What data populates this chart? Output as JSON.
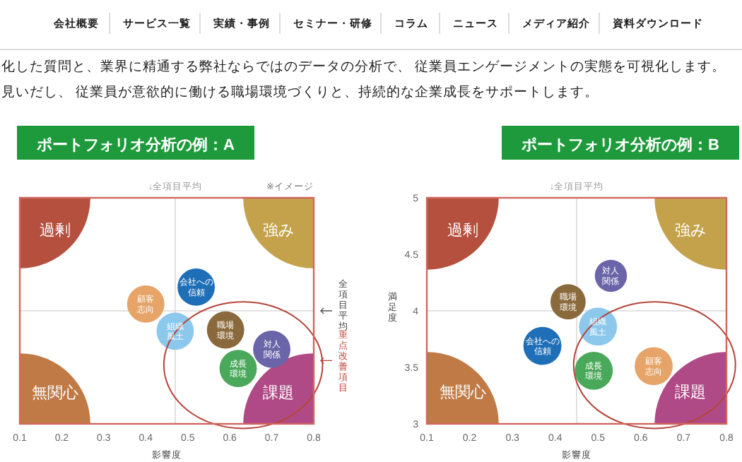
{
  "chart_data": [
    {
      "type": "other",
      "categories": [
        "会社概要",
        "サービス一覧",
        "実績・事例",
        "セミナー・研修",
        "コラム",
        "ニュース",
        "メディア紹介",
        "資料ダウンロード"
      ],
      "annotations": [
        "化した質問と、業界に精通する弊社ならではのデータの分析で、 従業員エンゲージメントの実態を可視化します。",
        "見いだし、 従業員が意欲的に働ける職場環境づくりと、持続的な企業成長をサポートします。"
      ]
    },
    {
      "type": "bubble",
      "title": "ポートフォリオ分析の例：A",
      "xlabel": "影響度",
      "xlim": [
        0.1,
        0.8
      ],
      "xticks": [
        0.1,
        0.2,
        0.3,
        0.4,
        0.5,
        0.6,
        0.7,
        0.8
      ],
      "ylim": [
        3,
        5
      ],
      "tick_labels": "x",
      "ref_lines": [
        {
          "axis": "x",
          "value": 0.47,
          "label": "↓全項目平均",
          "color": "#d9d9d9"
        },
        {
          "axis": "y",
          "value": 4,
          "label": "全項目平均",
          "color": "#d9d9d9"
        }
      ],
      "annotations": [
        "※イメージ",
        "重点改善項目"
      ],
      "series": [
        {
          "name": "過剰",
          "color": "#b5503f",
          "x": [
            0.1
          ],
          "values": [
            5
          ],
          "sizes": [
            1
          ]
        },
        {
          "name": "無関心",
          "color": "#c07a45",
          "x": [
            0.1
          ],
          "values": [
            3
          ],
          "sizes": [
            1
          ]
        },
        {
          "name": "強み",
          "color": "#c4a24c",
          "x": [
            0.8
          ],
          "values": [
            5
          ],
          "sizes": [
            1
          ]
        },
        {
          "name": "課題",
          "color": "#b04a86",
          "x": [
            0.8
          ],
          "values": [
            3
          ],
          "sizes": [
            1
          ]
        },
        {
          "name": "会社への信頼",
          "color": "#1f6fb8",
          "x": [
            0.52
          ],
          "values": [
            4.21
          ],
          "sizes": [
            0.07
          ]
        },
        {
          "name": "顧客志向",
          "color": "#e6a468",
          "x": [
            0.4
          ],
          "values": [
            4.06
          ],
          "sizes": [
            0.07
          ]
        },
        {
          "name": "組織風土",
          "color": "#8cc8ec",
          "x": [
            0.47
          ],
          "values": [
            3.82
          ],
          "sizes": [
            0.07
          ]
        },
        {
          "name": "職場環境",
          "color": "#8a6a3c",
          "x": [
            0.59
          ],
          "values": [
            3.83
          ],
          "sizes": [
            0.07
          ]
        },
        {
          "name": "対人関係",
          "color": "#6a64a8",
          "x": [
            0.7
          ],
          "values": [
            3.66
          ],
          "sizes": [
            0.07
          ]
        },
        {
          "name": "成長環境",
          "color": "#4aa85a",
          "x": [
            0.62
          ],
          "values": [
            3.49
          ],
          "sizes": [
            0.07
          ]
        }
      ]
    },
    {
      "type": "bubble",
      "title": "ポートフォリオ分析の例：B",
      "xlabel": "影響度",
      "ylabel": "満足度",
      "xlim": [
        0.1,
        0.8
      ],
      "xticks": [
        0.1,
        0.2,
        0.3,
        0.4,
        0.5,
        0.6,
        0.7,
        0.8
      ],
      "ylim": [
        3,
        5
      ],
      "yticks": [
        3,
        3.5,
        4,
        4.5,
        5
      ],
      "ref_lines": [
        {
          "axis": "x",
          "value": 0.45,
          "label": "↓全項目平均",
          "color": "#d9d9d9"
        },
        {
          "axis": "y",
          "value": 4,
          "color": "#d9d9d9"
        }
      ],
      "series": [
        {
          "name": "過剰",
          "color": "#b5503f",
          "x": [
            0.1
          ],
          "values": [
            5
          ],
          "sizes": [
            1
          ]
        },
        {
          "name": "無関心",
          "color": "#c07a45",
          "x": [
            0.1
          ],
          "values": [
            3
          ],
          "sizes": [
            1
          ]
        },
        {
          "name": "強み",
          "color": "#c4a24c",
          "x": [
            0.8
          ],
          "values": [
            5
          ],
          "sizes": [
            1
          ]
        },
        {
          "name": "課題",
          "color": "#b04a86",
          "x": [
            0.8
          ],
          "values": [
            3
          ],
          "sizes": [
            1
          ]
        },
        {
          "name": "対人関係",
          "color": "#6a64a8",
          "x": [
            0.53
          ],
          "values": [
            4.31
          ],
          "sizes": [
            0.05
          ]
        },
        {
          "name": "職場環境",
          "color": "#8a6a3c",
          "x": [
            0.43
          ],
          "values": [
            4.08
          ],
          "sizes": [
            0.06
          ]
        },
        {
          "name": "組織風土",
          "color": "#8cc8ec",
          "x": [
            0.5
          ],
          "values": [
            3.86
          ],
          "sizes": [
            0.07
          ]
        },
        {
          "name": "会社への信頼",
          "color": "#1f6fb8",
          "x": [
            0.37
          ],
          "values": [
            3.69
          ],
          "sizes": [
            0.07
          ]
        },
        {
          "name": "成長環境",
          "color": "#4aa85a",
          "x": [
            0.49
          ],
          "values": [
            3.47
          ],
          "sizes": [
            0.07
          ]
        },
        {
          "name": "顧客志向",
          "color": "#e6a468",
          "x": [
            0.63
          ],
          "values": [
            3.51
          ],
          "sizes": [
            0.07
          ]
        }
      ]
    }
  ]
}
